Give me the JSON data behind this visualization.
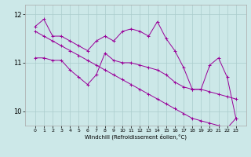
{
  "x": [
    0,
    1,
    2,
    3,
    4,
    5,
    6,
    7,
    8,
    9,
    10,
    11,
    12,
    13,
    14,
    15,
    16,
    17,
    18,
    19,
    20,
    21,
    22,
    23
  ],
  "line1": [
    11.75,
    11.9,
    11.55,
    11.55,
    11.45,
    11.35,
    11.25,
    11.45,
    11.55,
    11.45,
    11.65,
    11.7,
    11.65,
    11.55,
    11.85,
    11.5,
    11.25,
    10.9,
    10.45,
    10.45,
    10.95,
    11.1,
    10.7,
    9.85
  ],
  "line2": [
    11.1,
    11.1,
    11.05,
    11.05,
    10.85,
    10.7,
    10.55,
    10.75,
    11.2,
    11.05,
    11.0,
    11.0,
    10.95,
    10.9,
    10.85,
    10.75,
    10.6,
    10.5,
    10.45,
    10.45,
    10.4,
    10.35,
    10.3,
    10.25
  ],
  "line3": [
    11.65,
    11.55,
    11.45,
    11.35,
    11.25,
    11.15,
    11.05,
    10.95,
    10.85,
    10.75,
    10.65,
    10.55,
    10.45,
    10.35,
    10.25,
    10.15,
    10.05,
    9.95,
    9.85,
    9.8,
    9.75,
    9.7,
    9.65,
    9.85
  ],
  "color": "#990099",
  "bg_color": "#cce8e8",
  "grid_color": "#aacccc",
  "xlabel": "Windchill (Refroidissement éolien,°C)",
  "ylim": [
    9.7,
    12.2
  ],
  "yticks": [
    10,
    11,
    12
  ],
  "xticks": [
    0,
    1,
    2,
    3,
    4,
    5,
    6,
    7,
    8,
    9,
    10,
    11,
    12,
    13,
    14,
    15,
    16,
    17,
    18,
    19,
    20,
    21,
    22,
    23
  ]
}
